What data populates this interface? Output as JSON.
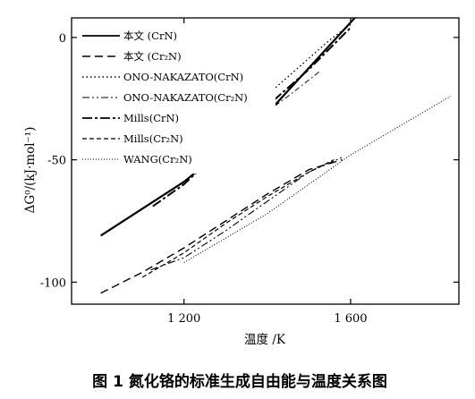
{
  "chart_data": {
    "type": "line",
    "xlabel": "温度 /K",
    "ylabel": "ΔG⁰/(kJ·mol⁻¹)",
    "xlim": [
      930,
      1860
    ],
    "ylim": [
      -109,
      8
    ],
    "xticks": [
      1200,
      1600
    ],
    "xtick_labels": [
      "1 200",
      "1 600"
    ],
    "yticks": [
      0,
      -50,
      -100
    ],
    "ytick_labels": [
      "0",
      "-50",
      "-100"
    ],
    "grid": false,
    "legend_position": "top-left",
    "series": [
      {
        "name": "本文 (CrN)",
        "style": "solid",
        "width": 2.2,
        "points": [
          [
            1000,
            -81
          ],
          [
            1200,
            -59
          ],
          [
            1400,
            -31
          ],
          [
            1610,
            8
          ]
        ]
      },
      {
        "name": "本文 (Cr₂N)",
        "style": "dashed",
        "width": 1.4,
        "points": [
          [
            1000,
            -104.5
          ],
          [
            1100,
            -96
          ],
          [
            1200,
            -86
          ],
          [
            1300,
            -75
          ],
          [
            1400,
            -64
          ],
          [
            1500,
            -54
          ],
          [
            1580,
            -50
          ]
        ]
      },
      {
        "name": "ONO-NAKAZATO(CrN)",
        "style": "dotted",
        "width": 1.4,
        "points": [
          [
            1250,
            -42
          ],
          [
            1350,
            -31
          ],
          [
            1450,
            -16
          ],
          [
            1550,
            -1
          ],
          [
            1605,
            6
          ]
        ]
      },
      {
        "name": "ONO-NAKAZATO(Cr₂N)",
        "style": "dashdotdot",
        "width": 1.1,
        "points": [
          [
            1120,
            -95
          ],
          [
            1200,
            -90
          ],
          [
            1300,
            -79
          ],
          [
            1400,
            -67
          ],
          [
            1500,
            -55
          ],
          [
            1580,
            -49
          ]
        ]
      },
      {
        "name": "Mills(CrN)",
        "style": "dashdot",
        "width": 2.0,
        "points": [
          [
            1125,
            -69
          ],
          [
            1200,
            -60
          ],
          [
            1300,
            -44
          ],
          [
            1400,
            -28
          ],
          [
            1500,
            -13
          ],
          [
            1600,
            4
          ]
        ]
      },
      {
        "name": "Mills(Cr₂N)",
        "style": "dashed-dense",
        "width": 1.2,
        "points": [
          [
            1100,
            -98
          ],
          [
            1200,
            -88
          ],
          [
            1300,
            -76
          ],
          [
            1400,
            -65
          ],
          [
            1500,
            -55
          ],
          [
            1560,
            -50
          ]
        ]
      },
      {
        "name": "WANG(Cr₂N)",
        "style": "fine-dotted",
        "width": 1.1,
        "points": [
          [
            1200,
            -92
          ],
          [
            1400,
            -72
          ],
          [
            1600,
            -48
          ],
          [
            1840,
            -24
          ]
        ]
      },
      {
        "name": "",
        "style": "thin-dashdot",
        "width": 0.9,
        "points": [
          [
            1370,
            -34
          ],
          [
            1450,
            -24
          ],
          [
            1525,
            -14
          ]
        ]
      }
    ]
  },
  "caption": "图 1   氮化铬的标准生成自由能与温度关系图"
}
